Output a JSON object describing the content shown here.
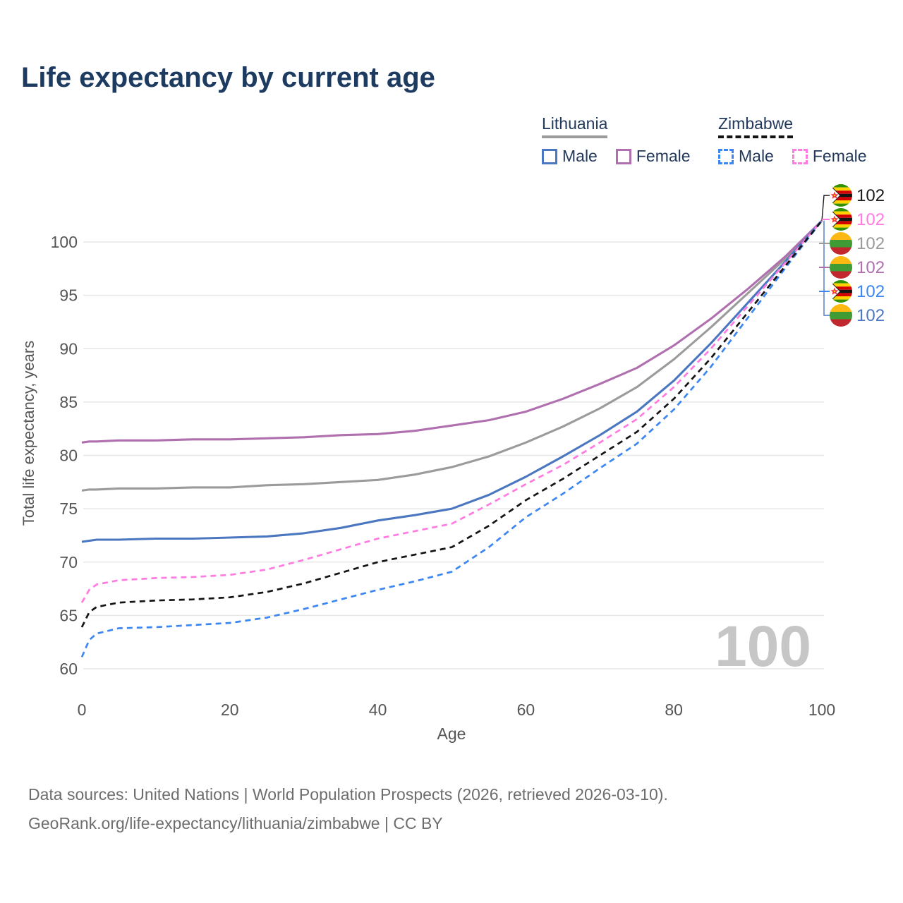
{
  "title": "Life expectancy by current age",
  "legend": {
    "groups": [
      {
        "label": "Lithuania",
        "line_style": "solid",
        "underline_color": "#9b9b9b",
        "items": [
          {
            "label": "Male",
            "color": "#4a77c0",
            "dashed": false
          },
          {
            "label": "Female",
            "color": "#b06fae",
            "dashed": false
          }
        ]
      },
      {
        "label": "Zimbabwe",
        "line_style": "dashed",
        "underline_color": "#141414",
        "items": [
          {
            "label": "Male",
            "color": "#3b86f0",
            "dashed": true
          },
          {
            "label": "Female",
            "color": "#ff7ae1",
            "dashed": true
          }
        ]
      }
    ]
  },
  "chart_data": {
    "type": "line",
    "title": "Life expectancy by current age",
    "xlabel": "Age",
    "ylabel": "Total life expectancy, years",
    "xlim": [
      0,
      100
    ],
    "ylim": [
      60,
      103
    ],
    "xticks": [
      0,
      20,
      40,
      60,
      80,
      100
    ],
    "yticks": [
      60,
      65,
      70,
      75,
      80,
      85,
      90,
      95,
      100
    ],
    "grid": "horizontal",
    "watermark": "100",
    "x": [
      0,
      1,
      2,
      5,
      10,
      15,
      20,
      25,
      30,
      35,
      40,
      45,
      50,
      55,
      60,
      65,
      70,
      75,
      80,
      85,
      90,
      95,
      100
    ],
    "series": [
      {
        "name": "Lithuania Both",
        "flag": "lt",
        "color": "#9b9b9b",
        "dashed": false,
        "values": [
          76.7,
          76.8,
          76.8,
          76.9,
          76.9,
          77.0,
          77.0,
          77.2,
          77.3,
          77.5,
          77.7,
          78.2,
          78.9,
          79.9,
          81.2,
          82.7,
          84.4,
          86.4,
          89.0,
          92.0,
          95.2,
          98.4,
          102
        ]
      },
      {
        "name": "Lithuania Female",
        "flag": "lt",
        "color": "#b06fae",
        "dashed": false,
        "values": [
          81.2,
          81.3,
          81.3,
          81.4,
          81.4,
          81.5,
          81.5,
          81.6,
          81.7,
          81.9,
          82.0,
          82.3,
          82.8,
          83.3,
          84.1,
          85.3,
          86.7,
          88.2,
          90.3,
          92.8,
          95.6,
          98.6,
          102
        ]
      },
      {
        "name": "Lithuania Male",
        "flag": "lt",
        "color": "#4a77c0",
        "dashed": false,
        "values": [
          71.9,
          72.0,
          72.1,
          72.1,
          72.2,
          72.2,
          72.3,
          72.4,
          72.7,
          73.2,
          73.9,
          74.4,
          75.0,
          76.3,
          78.0,
          79.9,
          81.9,
          84.1,
          87.0,
          90.5,
          94.3,
          98.1,
          102
        ]
      },
      {
        "name": "Zimbabwe Male",
        "flag": "zw",
        "color": "#3b86f0",
        "dashed": true,
        "values": [
          61.1,
          62.7,
          63.3,
          63.8,
          63.9,
          64.1,
          64.3,
          64.8,
          65.6,
          66.5,
          67.4,
          68.2,
          69.1,
          71.4,
          74.2,
          76.4,
          78.8,
          81.1,
          84.3,
          88.3,
          92.9,
          97.5,
          102
        ]
      },
      {
        "name": "Zimbabwe Female",
        "flag": "zw",
        "color": "#ff7ae1",
        "dashed": true,
        "values": [
          66.2,
          67.4,
          67.9,
          68.3,
          68.5,
          68.6,
          68.8,
          69.3,
          70.2,
          71.2,
          72.2,
          72.9,
          73.6,
          75.4,
          77.3,
          79.1,
          81.2,
          83.4,
          86.4,
          90.0,
          94.0,
          98.0,
          102
        ]
      },
      {
        "name": "Zimbabwe Both",
        "flag": "zw",
        "color": "#141414",
        "dashed": true,
        "values": [
          63.9,
          65.3,
          65.8,
          66.2,
          66.4,
          66.5,
          66.7,
          67.2,
          68.0,
          69.0,
          70.0,
          70.7,
          71.4,
          73.4,
          75.8,
          77.8,
          80.0,
          82.2,
          85.3,
          89.1,
          93.4,
          97.7,
          102
        ]
      }
    ],
    "end_labels": [
      {
        "value": "102",
        "color": "#1a1a1a",
        "flag": "zw",
        "series": "Zimbabwe Both"
      },
      {
        "value": "102",
        "color": "#ff7ae1",
        "flag": "zw",
        "series": "Zimbabwe Female"
      },
      {
        "value": "102",
        "color": "#9a9a9a",
        "flag": "lt",
        "series": "Lithuania Both"
      },
      {
        "value": "102",
        "color": "#b06fae",
        "flag": "lt",
        "series": "Lithuania Female"
      },
      {
        "value": "102",
        "color": "#3b86f0",
        "flag": "zw",
        "series": "Zimbabwe Male"
      },
      {
        "value": "102",
        "color": "#4a77c0",
        "flag": "lt",
        "series": "Lithuania Male"
      }
    ]
  },
  "footer": {
    "line1": "Data sources: United Nations | World Population Prospects (2026, retrieved 2026-03-10).",
    "line2": "GeoRank.org/life-expectancy/lithuania/zimbabwe | CC BY"
  }
}
